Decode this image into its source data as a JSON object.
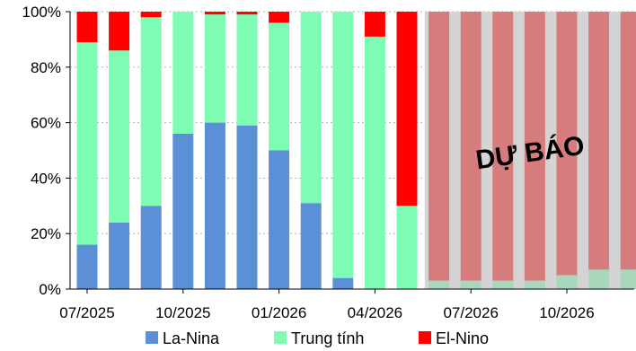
{
  "chart_data": {
    "type": "bar",
    "stacked": true,
    "categories": [
      "07/2025",
      "08/2025",
      "09/2025",
      "10/2025",
      "11/2025",
      "12/2025",
      "01/2026",
      "02/2026",
      "03/2026",
      "04/2026",
      "05/2026",
      "06/2026",
      "07/2026",
      "08/2026",
      "09/2026",
      "10/2026",
      "11/2026",
      "12/2026"
    ],
    "x_tick_labels": [
      "07/2025",
      "10/2025",
      "01/2026",
      "04/2026",
      "07/2026",
      "10/2026"
    ],
    "series": [
      {
        "name": "La-Nina",
        "color": "#5b8fd6",
        "values": [
          16,
          24,
          30,
          56,
          60,
          59,
          50,
          31,
          4,
          0,
          0,
          null,
          null,
          null,
          null,
          null,
          null,
          null
        ]
      },
      {
        "name": "Trung tính",
        "color": "#7efcb4",
        "values": [
          73,
          62,
          68,
          44,
          39,
          40,
          46,
          69,
          96,
          91,
          30,
          null,
          null,
          null,
          null,
          null,
          null,
          null
        ]
      },
      {
        "name": "El-Nino",
        "color": "#ff0000",
        "values": [
          11,
          14,
          2,
          0,
          1,
          1,
          4,
          0,
          0,
          9,
          70,
          null,
          null,
          null,
          null,
          null,
          null,
          null
        ]
      }
    ],
    "forecast_values": [
      3,
      3,
      3,
      3,
      5,
      7,
      7
    ],
    "forecast_colors": {
      "bar": "#a8d8bc",
      "top": "#d67c7c",
      "background": "#d4d4d4"
    },
    "forecast_label": "DỰ BÁO",
    "y_ticks": [
      "0%",
      "20%",
      "40%",
      "60%",
      "80%",
      "100%"
    ],
    "ylim": [
      0,
      100
    ],
    "grid": "horizontal dotted",
    "legend": "bottom"
  }
}
